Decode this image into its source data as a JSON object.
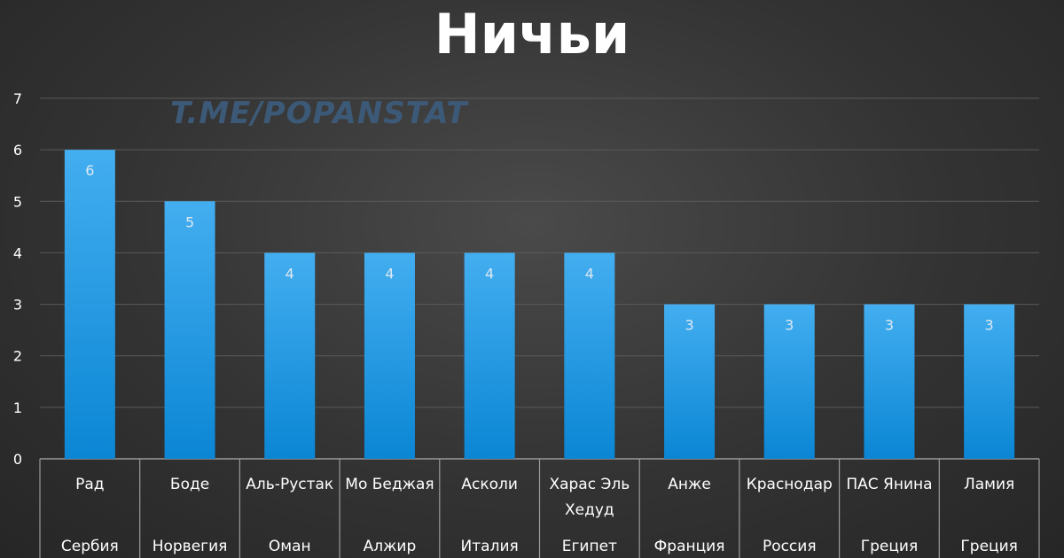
{
  "chart_data": {
    "type": "bar",
    "title": "Ничьи",
    "watermark": "T.ME/POPANSTAT",
    "categories": [
      {
        "club": "Рад",
        "country": "Сербия"
      },
      {
        "club": "Боде",
        "country": "Норвегия"
      },
      {
        "club": "Аль-Рустак",
        "country": "Оман"
      },
      {
        "club": "Мо Беджая",
        "country": "Алжир"
      },
      {
        "club": "Асколи",
        "country": "Италия"
      },
      {
        "club": "Харас Эль Хедуд",
        "country": "Египет"
      },
      {
        "club": "Анже",
        "country": "Франция"
      },
      {
        "club": "Краснодар",
        "country": "Россия"
      },
      {
        "club": "ПАС Янина",
        "country": "Греция"
      },
      {
        "club": "Ламия",
        "country": "Греция"
      }
    ],
    "values": [
      6,
      5,
      4,
      4,
      4,
      4,
      3,
      3,
      3,
      3
    ],
    "ylim": [
      0,
      7
    ],
    "yticks": [
      "0",
      "1",
      "2",
      "3",
      "4",
      "5",
      "6",
      "7"
    ],
    "grid": true,
    "legend": "none",
    "colors": {
      "bar_top": "#43aef0",
      "bar_bottom": "#0b86d4",
      "grid": "#5a5a5a",
      "text": "#ffffff",
      "label": "#dde8f2"
    }
  }
}
